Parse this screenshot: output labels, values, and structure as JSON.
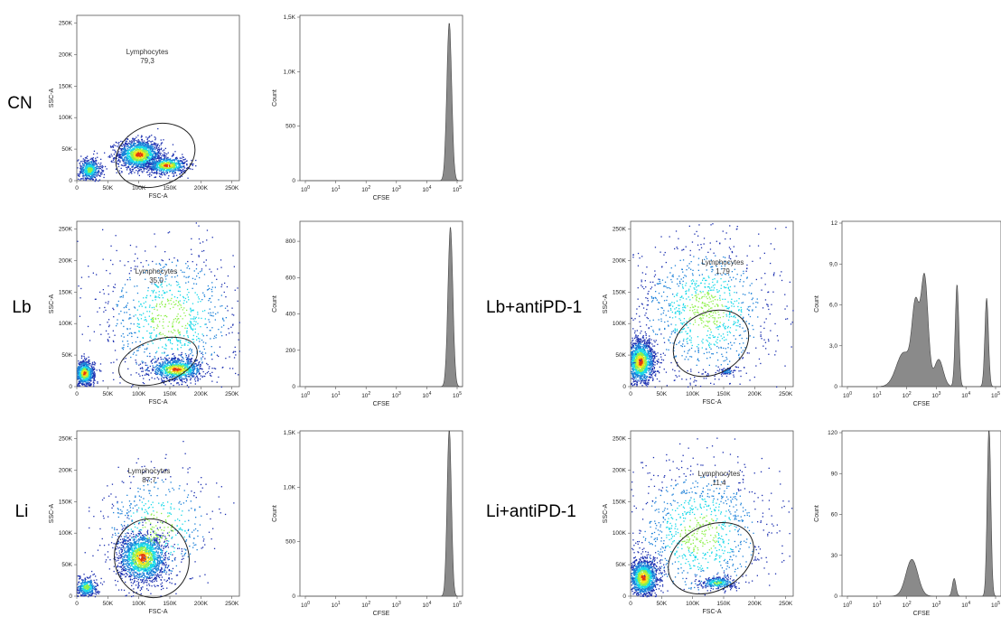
{
  "colors": {
    "density_low": "#1b2fb0",
    "density_mid": "#17d8e8",
    "density_high": "#f7e31a",
    "density_peak": "#e23a10",
    "histogram_fill": "#8a8a8a",
    "gate_line": "#222222"
  },
  "chart_data": [
    {
      "type": "scatter",
      "id": "cn-scatter",
      "row_label": "CN",
      "xlabel": "FSC-A",
      "ylabel": "SSC-A",
      "xlim": [
        0,
        262144
      ],
      "ylim": [
        0,
        262144
      ],
      "xticks": [
        "0",
        "50K",
        "100K",
        "150K",
        "200K",
        "250K"
      ],
      "yticks": [
        "0",
        "50K",
        "100K",
        "150K",
        "200K",
        "250K"
      ],
      "gate": {
        "name": "Lymphocytes",
        "value": "79,3"
      },
      "clusters": [
        {
          "x": 100000,
          "y": 42000,
          "sx": 18000,
          "sy": 12000,
          "weight": 0.55
        },
        {
          "x": 145000,
          "y": 25000,
          "sx": 16000,
          "sy": 7000,
          "weight": 0.25
        },
        {
          "x": 20000,
          "y": 18000,
          "sx": 9000,
          "sy": 9000,
          "weight": 0.2
        }
      ]
    },
    {
      "type": "area",
      "id": "cn-hist",
      "xlabel": "CFSE",
      "ylabel": "Count",
      "xscale": "log",
      "xlim": [
        1,
        100000
      ],
      "xticks": [
        "10^0",
        "10^1",
        "10^2",
        "10^3",
        "10^4",
        "10^5"
      ],
      "ylim": [
        0,
        1500
      ],
      "yticks": [
        "0",
        "500",
        "1,0K",
        "1,5K"
      ],
      "peaks": [
        {
          "x": 55000,
          "height": 1450,
          "width": 0.08
        }
      ]
    },
    {
      "type": "scatter",
      "id": "lb-scatter",
      "row_label": "Lb",
      "xlabel": "FSC-A",
      "ylabel": "SSC-A",
      "xlim": [
        0,
        262144
      ],
      "ylim": [
        0,
        262144
      ],
      "xticks": [
        "0",
        "50K",
        "100K",
        "150K",
        "200K",
        "250K"
      ],
      "yticks": [
        "0",
        "50K",
        "100K",
        "150K",
        "200K",
        "250K"
      ],
      "gate": {
        "name": "Lymphocytes",
        "value": "35,0"
      },
      "clusters": [
        {
          "x": 160000,
          "y": 28000,
          "sx": 22000,
          "sy": 9000,
          "weight": 0.35
        },
        {
          "x": 12000,
          "y": 22000,
          "sx": 8000,
          "sy": 10000,
          "weight": 0.3
        },
        {
          "x": 150000,
          "y": 110000,
          "sx": 60000,
          "sy": 60000,
          "weight": 0.35
        }
      ]
    },
    {
      "type": "area",
      "id": "lb-hist",
      "xlabel": "CFSE",
      "ylabel": "Count",
      "xscale": "log",
      "xlim": [
        1,
        100000
      ],
      "xticks": [
        "10^0",
        "10^1",
        "10^2",
        "10^3",
        "10^4",
        "10^5"
      ],
      "ylim": [
        0,
        900
      ],
      "yticks": [
        "0",
        "200",
        "400",
        "600",
        "800"
      ],
      "peaks": [
        {
          "x": 60000,
          "height": 880,
          "width": 0.08
        }
      ]
    },
    {
      "type": "scatter",
      "id": "li-scatter",
      "row_label": "Li",
      "xlabel": "FSC-A",
      "ylabel": "SSC-A",
      "xlim": [
        0,
        262144
      ],
      "ylim": [
        0,
        262144
      ],
      "xticks": [
        "0",
        "50K",
        "100K",
        "150K",
        "200K",
        "250K"
      ],
      "yticks": [
        "0",
        "50K",
        "100K",
        "150K",
        "200K",
        "250K"
      ],
      "gate": {
        "name": "Lymphocytes",
        "value": "87,7"
      },
      "clusters": [
        {
          "x": 105000,
          "y": 62000,
          "sx": 20000,
          "sy": 20000,
          "weight": 0.65
        },
        {
          "x": 15000,
          "y": 15000,
          "sx": 9000,
          "sy": 8000,
          "weight": 0.15
        },
        {
          "x": 130000,
          "y": 110000,
          "sx": 50000,
          "sy": 50000,
          "weight": 0.2
        }
      ]
    },
    {
      "type": "area",
      "id": "li-hist",
      "xlabel": "CFSE",
      "ylabel": "Count",
      "xscale": "log",
      "xlim": [
        1,
        100000
      ],
      "xticks": [
        "10^0",
        "10^1",
        "10^2",
        "10^3",
        "10^4",
        "10^5"
      ],
      "ylim": [
        0,
        1500
      ],
      "yticks": [
        "0",
        "500",
        "1,0K",
        "1,5K"
      ],
      "peaks": [
        {
          "x": 55000,
          "height": 1540,
          "width": 0.07
        }
      ]
    },
    {
      "type": "scatter",
      "id": "lb-antipd1-scatter",
      "row_label": "Lb+antiPD-1",
      "xlabel": "FSC-A",
      "ylabel": "SSC-A",
      "xlim": [
        0,
        262144
      ],
      "ylim": [
        0,
        262144
      ],
      "xticks": [
        "0",
        "50K",
        "100K",
        "150K",
        "200K",
        "250K"
      ],
      "yticks": [
        "0",
        "50K",
        "100K",
        "150K",
        "200K",
        "250K"
      ],
      "gate": {
        "name": "Lymphocytes",
        "value": "1,79"
      },
      "clusters": [
        {
          "x": 15000,
          "y": 40000,
          "sx": 12000,
          "sy": 18000,
          "weight": 0.55
        },
        {
          "x": 155000,
          "y": 25000,
          "sx": 6000,
          "sy": 3000,
          "weight": 0.03
        },
        {
          "x": 120000,
          "y": 120000,
          "sx": 60000,
          "sy": 60000,
          "weight": 0.42
        }
      ]
    },
    {
      "type": "area",
      "id": "lb-antipd1-hist",
      "xlabel": "CFSE",
      "ylabel": "Count",
      "xscale": "log",
      "xlim": [
        1,
        100000
      ],
      "xticks": [
        "10^0",
        "10^1",
        "10^2",
        "10^3",
        "10^4",
        "10^5"
      ],
      "ylim": [
        0,
        12
      ],
      "yticks": [
        "0",
        "3,0",
        "6,0",
        "9,0",
        "12"
      ],
      "peaks": [
        {
          "x": 80,
          "height": 2.5,
          "width": 0.25
        },
        {
          "x": 200,
          "height": 5.5,
          "width": 0.12
        },
        {
          "x": 400,
          "height": 8.0,
          "width": 0.12
        },
        {
          "x": 1200,
          "height": 2.0,
          "width": 0.15
        },
        {
          "x": 5000,
          "height": 7.5,
          "width": 0.06
        },
        {
          "x": 50000,
          "height": 6.5,
          "width": 0.06
        }
      ]
    },
    {
      "type": "scatter",
      "id": "li-antipd1-scatter",
      "row_label": "Li+antiPD-1",
      "xlabel": "FSC-A",
      "ylabel": "SSC-A",
      "xlim": [
        0,
        262144
      ],
      "ylim": [
        0,
        262144
      ],
      "xticks": [
        "0",
        "50K",
        "100K",
        "150K",
        "200K",
        "250K"
      ],
      "yticks": [
        "0",
        "50K",
        "100K",
        "150K",
        "200K",
        "250K"
      ],
      "gate": {
        "name": "Lymphocytes",
        "value": "11,4"
      },
      "clusters": [
        {
          "x": 20000,
          "y": 30000,
          "sx": 12000,
          "sy": 15000,
          "weight": 0.5
        },
        {
          "x": 140000,
          "y": 22000,
          "sx": 14000,
          "sy": 5000,
          "weight": 0.12
        },
        {
          "x": 110000,
          "y": 100000,
          "sx": 60000,
          "sy": 60000,
          "weight": 0.38
        }
      ]
    },
    {
      "type": "area",
      "id": "li-antipd1-hist",
      "xlabel": "CFSE",
      "ylabel": "Count",
      "xscale": "log",
      "xlim": [
        1,
        100000
      ],
      "xticks": [
        "10^0",
        "10^1",
        "10^2",
        "10^3",
        "10^4",
        "10^5"
      ],
      "ylim": [
        0,
        120
      ],
      "yticks": [
        "0",
        "30",
        "60",
        "90",
        "120"
      ],
      "peaks": [
        {
          "x": 150,
          "height": 27,
          "width": 0.2
        },
        {
          "x": 4000,
          "height": 13,
          "width": 0.06
        },
        {
          "x": 60000,
          "height": 125,
          "width": 0.06
        }
      ]
    }
  ]
}
